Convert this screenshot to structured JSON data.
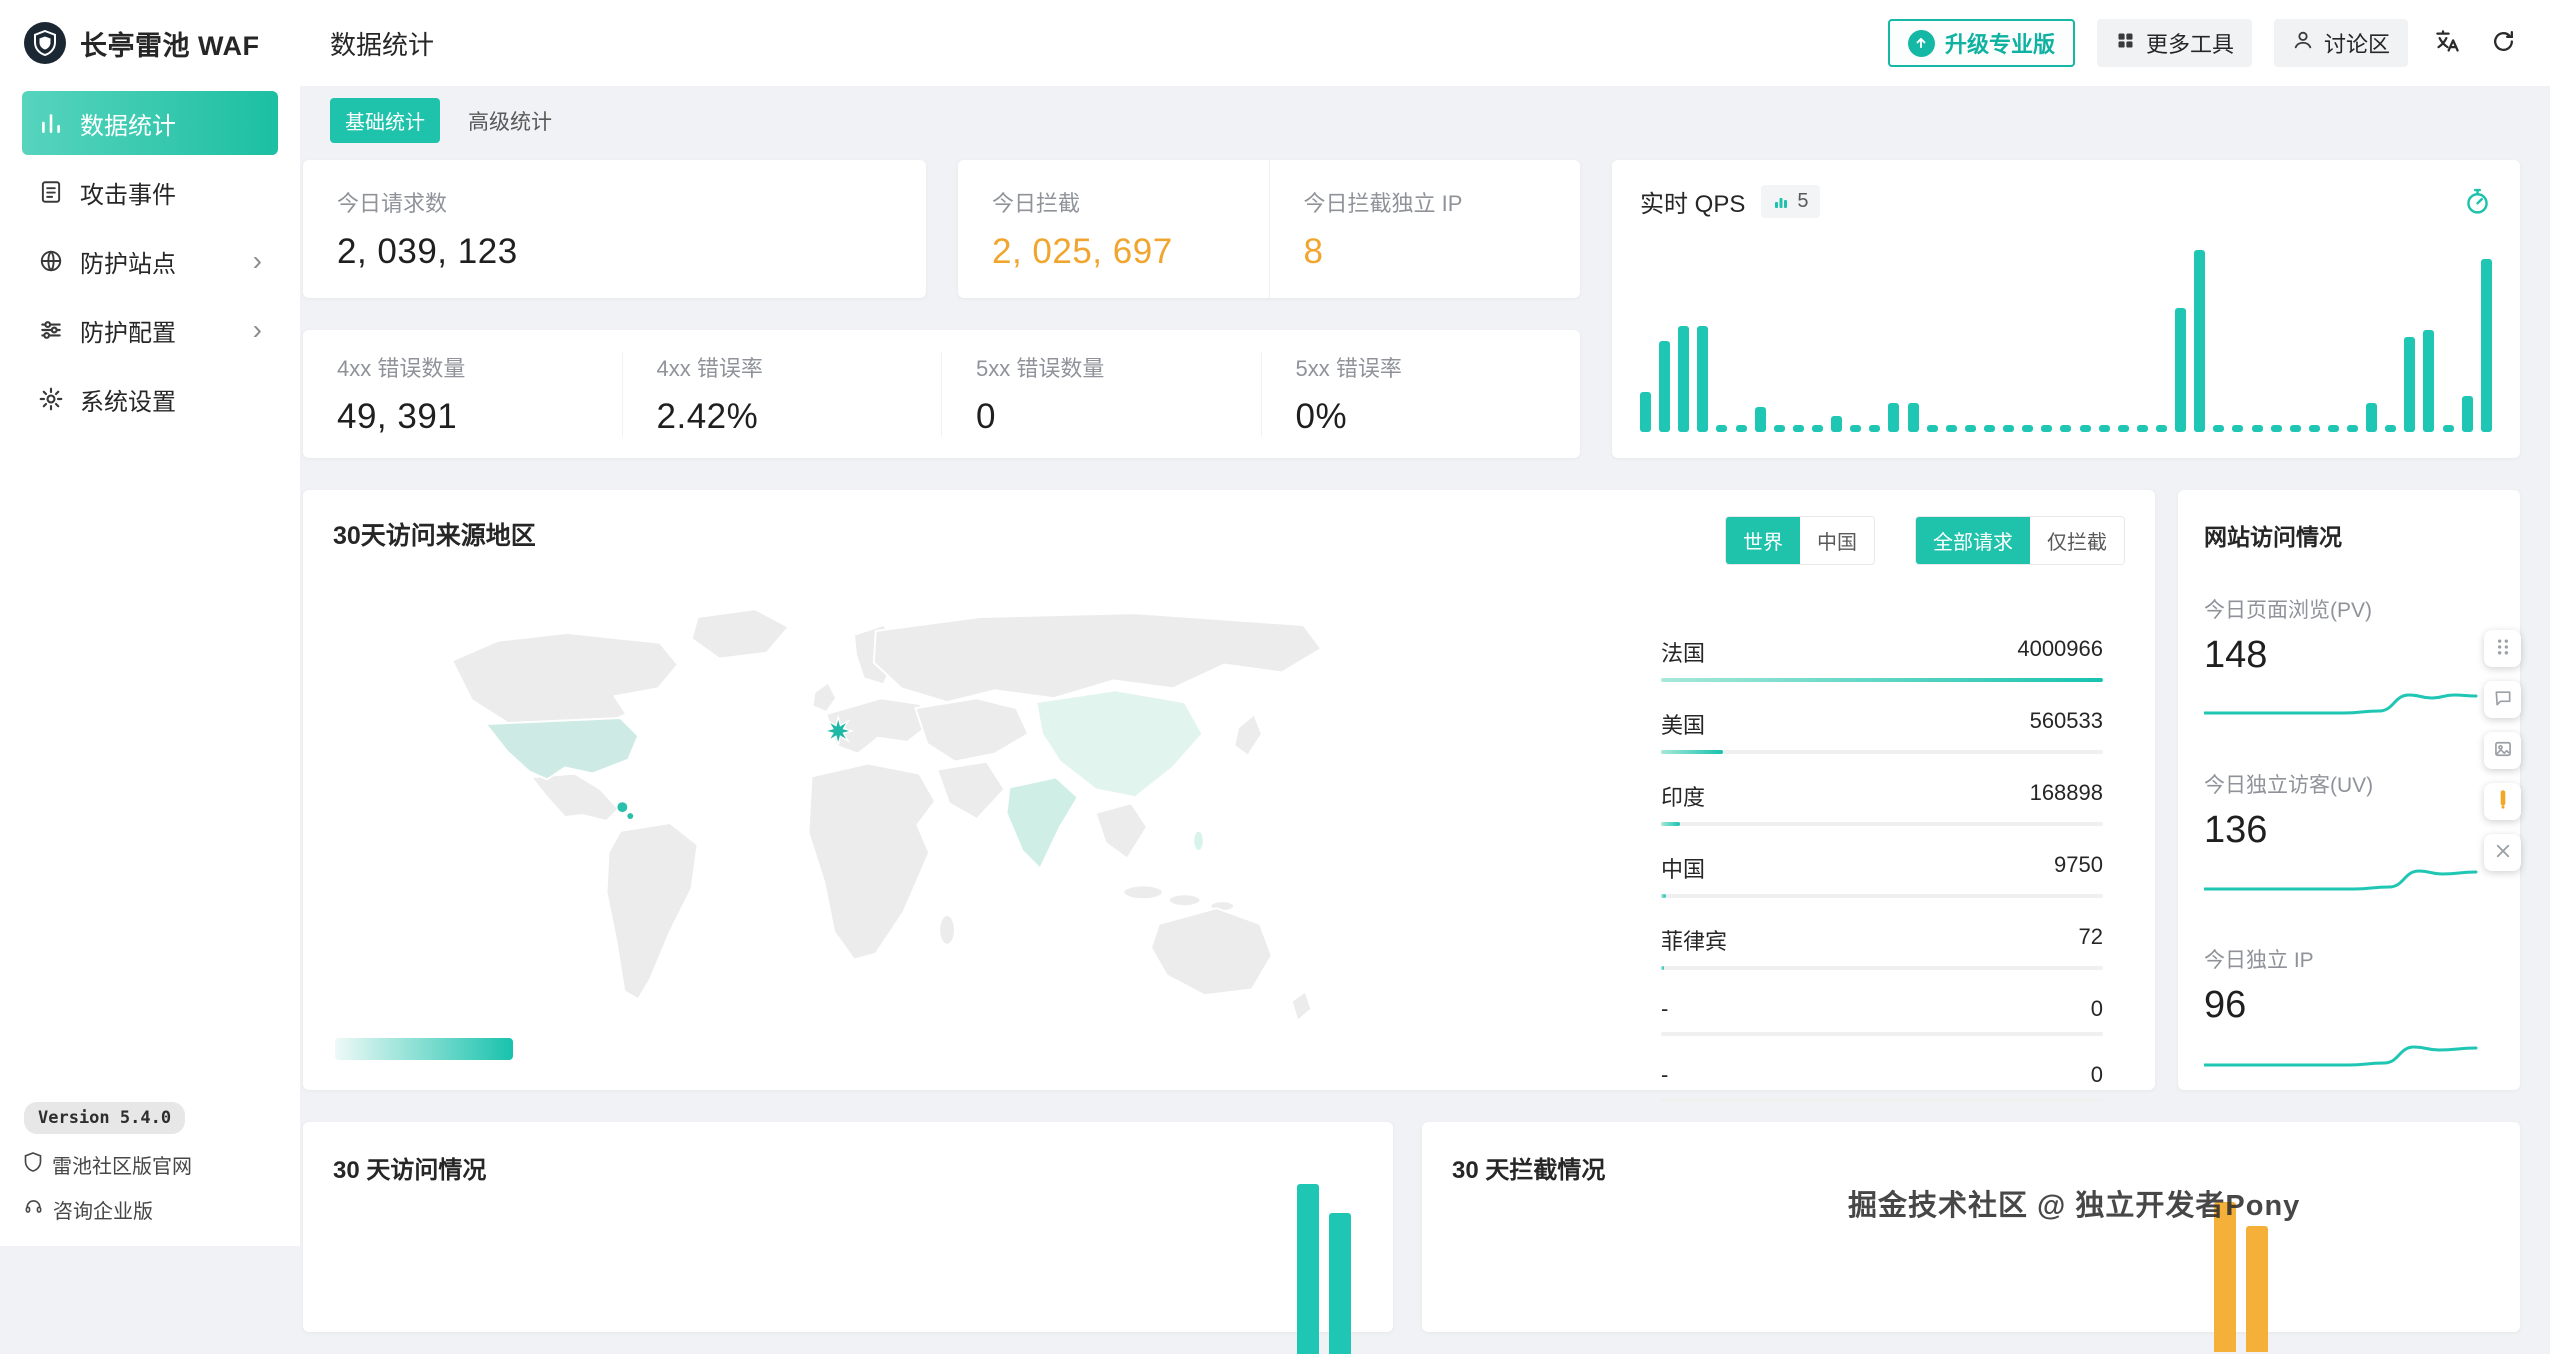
{
  "brand": {
    "name": "长亭雷池 WAF",
    "version": "Version 5.4.0"
  },
  "sidebar": {
    "items": [
      {
        "label": "数据统计",
        "active": true
      },
      {
        "label": "攻击事件",
        "active": false
      },
      {
        "label": "防护站点",
        "active": false,
        "has_children": true
      },
      {
        "label": "防护配置",
        "active": false,
        "has_children": true
      },
      {
        "label": "系统设置",
        "active": false
      }
    ],
    "footer_links": [
      {
        "label": "雷池社区版官网"
      },
      {
        "label": "咨询企业版"
      }
    ]
  },
  "header": {
    "title": "数据统计",
    "buttons": {
      "upgrade": "升级专业版",
      "more_tools": "更多工具",
      "forum": "讨论区"
    }
  },
  "tabs": {
    "basic": "基础统计",
    "advanced": "高级统计"
  },
  "stat_cards": {
    "today_requests": {
      "label": "今日请求数",
      "value": "2, 039, 123"
    },
    "today_blocked": {
      "label": "今日拦截",
      "value": "2, 025, 697"
    },
    "today_blocked_ip": {
      "label": "今日拦截独立 IP",
      "value": "8"
    },
    "err4xx_count": {
      "label": "4xx 错误数量",
      "value": "49, 391"
    },
    "err4xx_rate": {
      "label": "4xx 错误率",
      "value": "2.42%"
    },
    "err5xx_count": {
      "label": "5xx 错误数量",
      "value": "0"
    },
    "err5xx_rate": {
      "label": "5xx 错误率",
      "value": "0%"
    }
  },
  "qps": {
    "title": "实时 QPS",
    "badge": "5",
    "chart_data": {
      "type": "bar",
      "values": [
        22,
        50,
        58,
        58,
        4,
        4,
        14,
        4,
        4,
        4,
        9,
        4,
        4,
        16,
        16,
        4,
        4,
        4,
        4,
        4,
        4,
        4,
        4,
        4,
        4,
        4,
        4,
        4,
        68,
        100,
        4,
        4,
        4,
        4,
        4,
        4,
        4,
        4,
        16,
        4,
        52,
        56,
        4,
        20,
        95
      ]
    }
  },
  "map_card": {
    "title": "30天访问来源地区",
    "region_toggle": {
      "options": [
        "世界",
        "中国"
      ],
      "active": "世界"
    },
    "scope_toggle": {
      "options": [
        "全部请求",
        "仅拦截"
      ],
      "active": "全部请求"
    },
    "chart_data": {
      "type": "bar",
      "categories": [
        "法国",
        "美国",
        "印度",
        "中国",
        "菲律宾",
        "-",
        "-"
      ],
      "values": [
        4000966,
        560533,
        168898,
        9750,
        72,
        0,
        0
      ]
    },
    "countries": [
      {
        "name": "法国",
        "value": "4000966",
        "pct": 100
      },
      {
        "name": "美国",
        "value": "560533",
        "pct": 14
      },
      {
        "name": "印度",
        "value": "168898",
        "pct": 4.2
      },
      {
        "name": "中国",
        "value": "9750",
        "pct": 1.2
      },
      {
        "name": "菲律宾",
        "value": "72",
        "pct": 0.6
      },
      {
        "name": "-",
        "value": "0",
        "pct": 0
      },
      {
        "name": "-",
        "value": "0",
        "pct": 0
      }
    ]
  },
  "site_card": {
    "title": "网站访问情况",
    "metrics": [
      {
        "label": "今日页面浏览(PV)",
        "value": "148",
        "spark": [
          [
            0,
            30
          ],
          [
            140,
            30
          ],
          [
            175,
            28
          ],
          [
            205,
            12
          ],
          [
            228,
            15
          ],
          [
            250,
            12
          ],
          [
            272,
            13
          ]
        ]
      },
      {
        "label": "今日独立访客(UV)",
        "value": "136",
        "spark": [
          [
            0,
            31
          ],
          [
            150,
            31
          ],
          [
            185,
            29
          ],
          [
            215,
            13
          ],
          [
            238,
            16
          ],
          [
            272,
            14
          ]
        ]
      },
      {
        "label": "今日独立 IP",
        "value": "96",
        "spark": [
          [
            0,
            32
          ],
          [
            145,
            32
          ],
          [
            180,
            30
          ],
          [
            210,
            14
          ],
          [
            235,
            17
          ],
          [
            272,
            15
          ]
        ]
      }
    ]
  },
  "bottom_cards": {
    "visits": {
      "title": "30 天访问情况",
      "chart_data": {
        "type": "bar",
        "values": [
          100,
          83
        ]
      }
    },
    "blocks": {
      "title": "30 天拦截情况",
      "chart_data": {
        "type": "bar",
        "values": [
          100,
          84
        ]
      }
    }
  },
  "watermark": "掘金技术社区 @ 独立开发者Pony",
  "icons": {
    "brand-logo": "shield",
    "sidebar": [
      "bar-chart",
      "document",
      "globe",
      "sliders",
      "gear"
    ],
    "upgrade": "rocket-up-arrow",
    "more_tools": "grid",
    "forum": "user",
    "language": "translate",
    "refresh": "circular-arrow",
    "qps_corner": "stopwatch",
    "footer": [
      "shield",
      "headset"
    ],
    "floating_toolbar": [
      "drag-dots",
      "comment",
      "image",
      "orange-marker",
      "close"
    ]
  },
  "colors": {
    "teal": "#1ec6b3",
    "orange": "#f0a62e",
    "background": "#f0f2f5",
    "map_highlight": "#cdebe4"
  }
}
